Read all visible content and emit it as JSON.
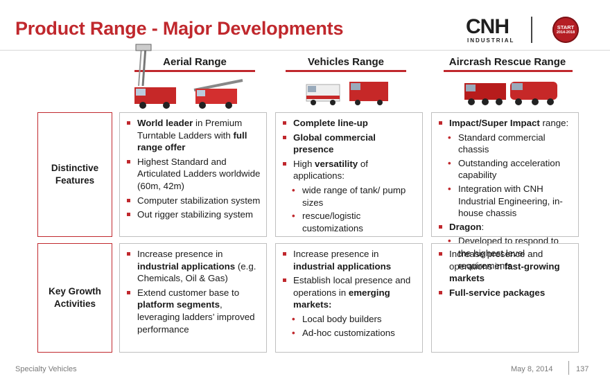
{
  "slide": {
    "title": "Product Range - Major Developments",
    "logo": {
      "name": "CNH",
      "sub": "INDUSTRIAL"
    },
    "badge": {
      "line1": "START",
      "line2": "2014-2018"
    }
  },
  "columns": {
    "aerial": "Aerial Range",
    "vehicles": "Vehicles Range",
    "aircrash": "Aircrash Rescue Range"
  },
  "rows": {
    "distinctive": "Distinctive Features",
    "growth": "Key Growth Activities"
  },
  "cells": {
    "aerial_features": [
      {
        "pre": "",
        "b": "World leader",
        "post": " in Premium Turntable Ladders with ",
        "b2": "full range offer"
      },
      {
        "text": "Highest Standard and Articulated Ladders worldwide (60m, 42m)"
      },
      {
        "text": "Computer stabilization system"
      },
      {
        "text": "Out rigger stabilizing system"
      }
    ],
    "vehicles_features": {
      "b1": "Complete line-up",
      "b2": "Global commercial presence",
      "high_pre": "High ",
      "high_b": "versatility",
      "high_post": " of applications:",
      "subs": [
        "wide range of tank/ pump sizes",
        "rescue/logistic customizations"
      ]
    },
    "aircrash_features": {
      "impact_b": "Impact/Super Impact",
      "impact_post": " range:",
      "impact_subs": [
        "Standard commercial chassis",
        "Outstanding acceleration capability",
        "Integration with CNH Industrial Engineering, in-house chassis"
      ],
      "dragon_b": "Dragon",
      "dragon_post": ":",
      "dragon_subs": [
        "Developed to respond to the highest level requirements"
      ]
    },
    "aerial_growth": {
      "l1_pre": "Increase presence in ",
      "l1_b": "industrial applications",
      "l1_post": " (e.g. Chemicals, Oil & Gas)",
      "l2_pre": "Extend customer base to ",
      "l2_b": "platform segments",
      "l2_post": ", leveraging ladders’ improved performance"
    },
    "vehicles_growth": {
      "l1_pre": "Increase presence in ",
      "l1_b": "industrial applications",
      "l2_pre": "Establish local presence and operations in ",
      "l2_b": "emerging markets:",
      "subs": [
        "Local body builders",
        "Ad-hoc customizations"
      ]
    },
    "aircrash_growth": {
      "l1_pre": "Increase presence and operations in ",
      "l1_b": "fast-growing markets",
      "l2_b": "Full-service packages"
    }
  },
  "footer": {
    "left": "Specialty Vehicles",
    "date": "May 8, 2014",
    "page": "137"
  },
  "colors": {
    "accent": "#c0282d",
    "border": "#bfbfbf",
    "footer": "#7a7a7a"
  }
}
